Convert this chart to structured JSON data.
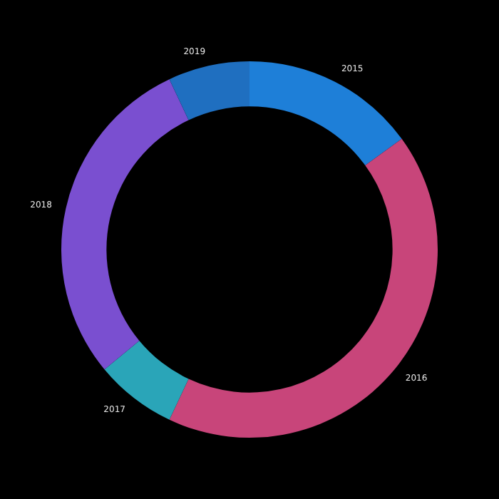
{
  "chart_data": {
    "type": "donut",
    "categories": [
      "2015",
      "2016",
      "2017",
      "2018",
      "2019"
    ],
    "values": [
      15,
      42,
      7,
      29,
      7
    ],
    "colors": [
      "#1e7fd8",
      "#c8457a",
      "#2aa5b8",
      "#7a4fd0",
      "#1f6fc0"
    ],
    "legend": false
  }
}
